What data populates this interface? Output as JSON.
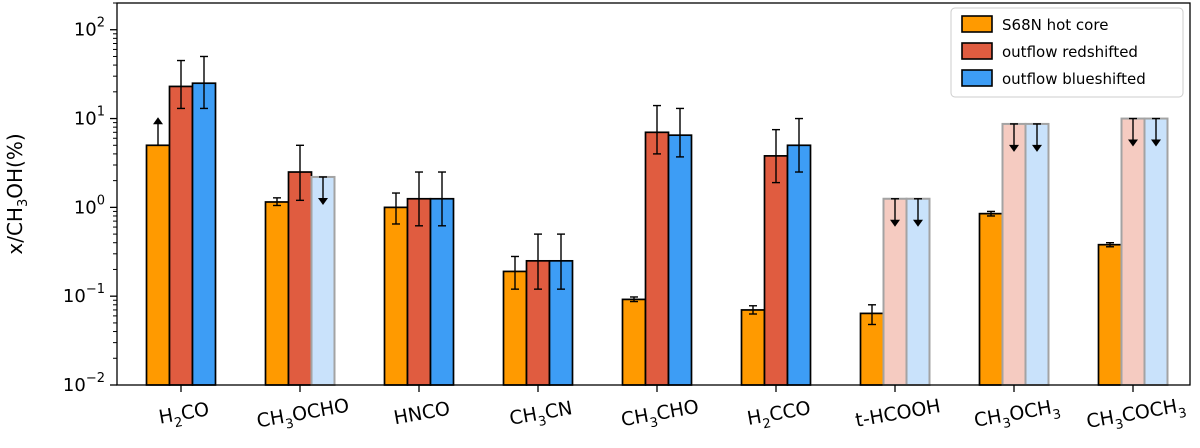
{
  "chart_data": {
    "type": "bar",
    "scale": "log",
    "title": "",
    "xlabel": "",
    "ylabel": {
      "prefix": "x/CH",
      "sub": "3",
      "suffix": "OH(%)"
    },
    "ylim": [
      0.01,
      200
    ],
    "yticks": [
      {
        "value": 0.01,
        "base": "10",
        "exp": "−2"
      },
      {
        "value": 0.1,
        "base": "10",
        "exp": "−1"
      },
      {
        "value": 1,
        "base": "10",
        "exp": "0"
      },
      {
        "value": 10,
        "base": "10",
        "exp": "1"
      },
      {
        "value": 100,
        "base": "10",
        "exp": "2"
      }
    ],
    "legend_position": "top-right",
    "categories": [
      {
        "name": "H2CO",
        "parts": [
          "H",
          "2",
          "CO"
        ]
      },
      {
        "name": "CH3OCHO",
        "parts": [
          "CH",
          "3",
          "OCHO"
        ]
      },
      {
        "name": "HNCO",
        "parts": [
          "HNCO"
        ]
      },
      {
        "name": "CH3CN",
        "parts": [
          "CH",
          "3",
          "CN"
        ]
      },
      {
        "name": "CH3CHO",
        "parts": [
          "CH",
          "3",
          "CHO"
        ]
      },
      {
        "name": "H2CCO",
        "parts": [
          "H",
          "2",
          "CCO"
        ]
      },
      {
        "name": "t-HCOOH",
        "parts": [
          "t-HCOOH"
        ]
      },
      {
        "name": "CH3OCH3",
        "parts": [
          "CH",
          "3",
          "OCH",
          "3"
        ]
      },
      {
        "name": "CH3COCH3",
        "parts": [
          "CH",
          "3",
          "COCH",
          "3"
        ]
      }
    ],
    "series": [
      {
        "name": "S68N hot core",
        "color": "#ff9a00",
        "faded_color": "#ffd699",
        "values": [
          5.0,
          1.15,
          1.0,
          0.19,
          0.092,
          0.07,
          0.064,
          0.85,
          0.38
        ],
        "err_low": [
          null,
          1.05,
          0.65,
          0.12,
          0.087,
          0.063,
          0.048,
          0.8,
          0.36
        ],
        "err_high": [
          null,
          1.28,
          1.45,
          0.28,
          0.098,
          0.078,
          0.08,
          0.9,
          0.4
        ],
        "limit": [
          "lower",
          "none",
          "none",
          "none",
          "none",
          "none",
          "none",
          "none",
          "none"
        ]
      },
      {
        "name": "outflow redshifted",
        "color": "#e05c40",
        "faded_color": "#f5cbc1",
        "values": [
          23,
          2.5,
          1.25,
          0.25,
          7.0,
          3.8,
          1.25,
          8.7,
          10
        ],
        "err_low": [
          13,
          1.2,
          0.62,
          0.12,
          4.0,
          1.9,
          null,
          null,
          null
        ],
        "err_high": [
          45,
          5.0,
          2.5,
          0.5,
          14,
          7.5,
          null,
          null,
          null
        ],
        "limit": [
          "none",
          "none",
          "none",
          "none",
          "none",
          "none",
          "upper",
          "upper",
          "upper"
        ]
      },
      {
        "name": "outflow blueshifted",
        "color": "#3d9df5",
        "faded_color": "#c9e2fb",
        "values": [
          25,
          2.2,
          1.25,
          0.25,
          6.5,
          5.0,
          1.25,
          8.7,
          10
        ],
        "err_low": [
          13,
          null,
          0.62,
          0.12,
          3.7,
          2.5,
          null,
          null,
          null
        ],
        "err_high": [
          50,
          null,
          2.5,
          0.5,
          13,
          10,
          null,
          null,
          null
        ],
        "limit": [
          "none",
          "upper",
          "none",
          "none",
          "none",
          "none",
          "upper",
          "upper",
          "upper"
        ]
      }
    ]
  }
}
